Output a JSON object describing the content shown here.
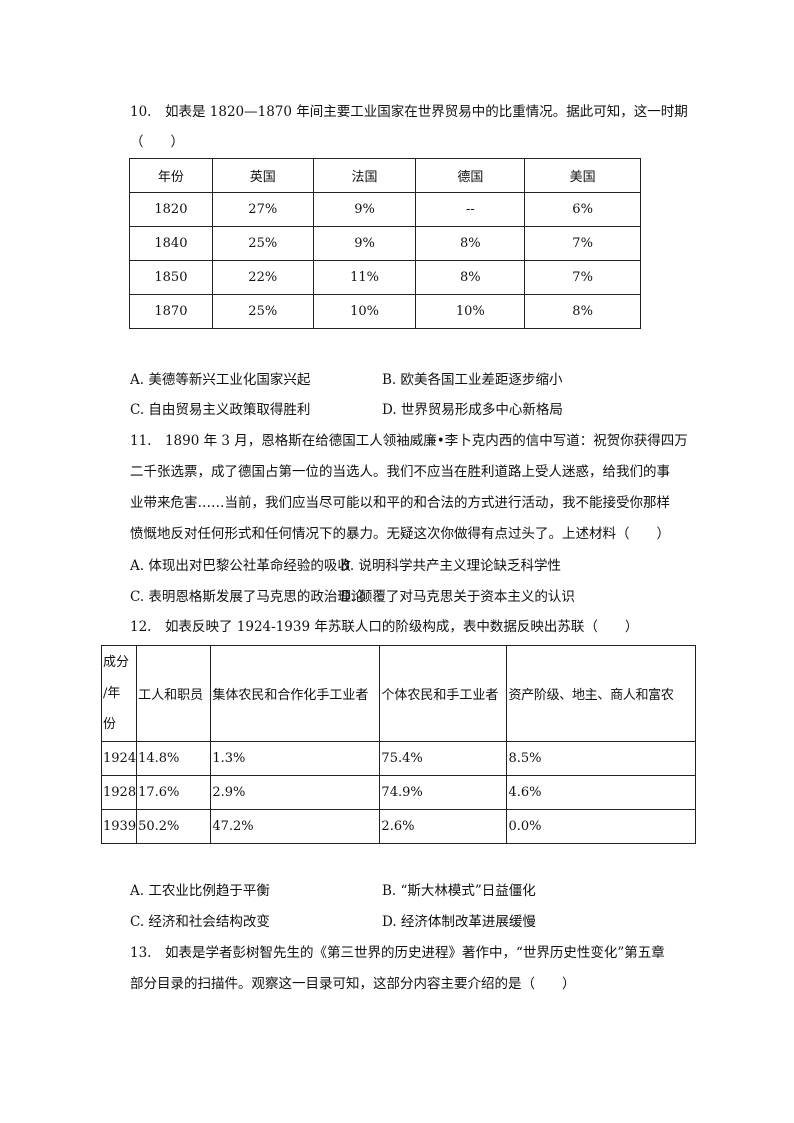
{
  "q10": {
    "stem": "10.　如表是 1820—1870 年间主要工业国家在世界贸易中的比重情况。据此可知，这一时期",
    "blank": "（　　）",
    "table": {
      "headers": [
        "年份",
        "英国",
        "法国",
        "德国",
        "美国"
      ],
      "rows": [
        [
          "1820",
          "27%",
          "9%",
          "--",
          "6%"
        ],
        [
          "1840",
          "25%",
          "9%",
          "8%",
          "7%"
        ],
        [
          "1850",
          "22%",
          "11%",
          "8%",
          "7%"
        ],
        [
          "1870",
          "25%",
          "10%",
          "10%",
          "8%"
        ]
      ]
    },
    "options": [
      "A. 美德等新兴工业化国家兴起",
      "B. 欧美各国工业差距逐步缩小",
      "C. 自由贸易主义政策取得胜利",
      "D. 世界贸易形成多中心新格局"
    ]
  },
  "q11": {
    "lines": [
      "11.　1890 年 3 月，恩格斯在给德国工人领袖威廉•李卜克内西的信中写道：祝贺你获得四万",
      "二千张选票，成了德国占第一位的当选人。我们不应当在胜利道路上受人迷惑，给我们的事",
      "业带来危害……当前，我们应当尽可能以和平的和合法的方式进行活动，我不能接受你那样",
      "愤慨地反对任何形式和任何情况下的暴力。无疑这次你做得有点过头了。上述材料（　　）"
    ],
    "options": [
      "A. 体现出对巴黎公社革命经验的吸收",
      "B. 说明科学共产主义理论缺乏科学性",
      "C. 表明恩格斯发展了马克思的政治理论",
      "D. 颠覆了对马克思关于资本主义的认识"
    ]
  },
  "q12": {
    "stem": "12.　如表反映了 1924-1939 年苏联人口的阶级构成，表中数据反映出苏联（　　）",
    "table": {
      "corner": [
        "成分",
        "/年",
        "份"
      ],
      "headers": [
        "工人和职员",
        "集体农民和合作化手工业者",
        "个体农民和手工业者",
        "资产阶级、地主、商人和富农"
      ],
      "rows": [
        [
          "1924",
          "14.8%",
          "1.3%",
          "75.4%",
          "8.5%"
        ],
        [
          "1928",
          "17.6%",
          "2.9%",
          "74.9%",
          "4.6%"
        ],
        [
          "1939",
          "50.2%",
          "47.2%",
          "2.6%",
          "0.0%"
        ]
      ]
    },
    "options": [
      "A. 工农业比例趋于平衡",
      "B. “斯大林模式”日益僵化",
      "C. 经济和社会结构改变",
      "D. 经济体制改革进展缓慢"
    ]
  },
  "q13": {
    "lines": [
      "13.　如表是学者彭树智先生的《第三世界的历史进程》著作中，“世界历史性变化”第五章",
      "部分目录的扫描件。观察这一目录可知，这部分内容主要介绍的是（　　）"
    ]
  }
}
